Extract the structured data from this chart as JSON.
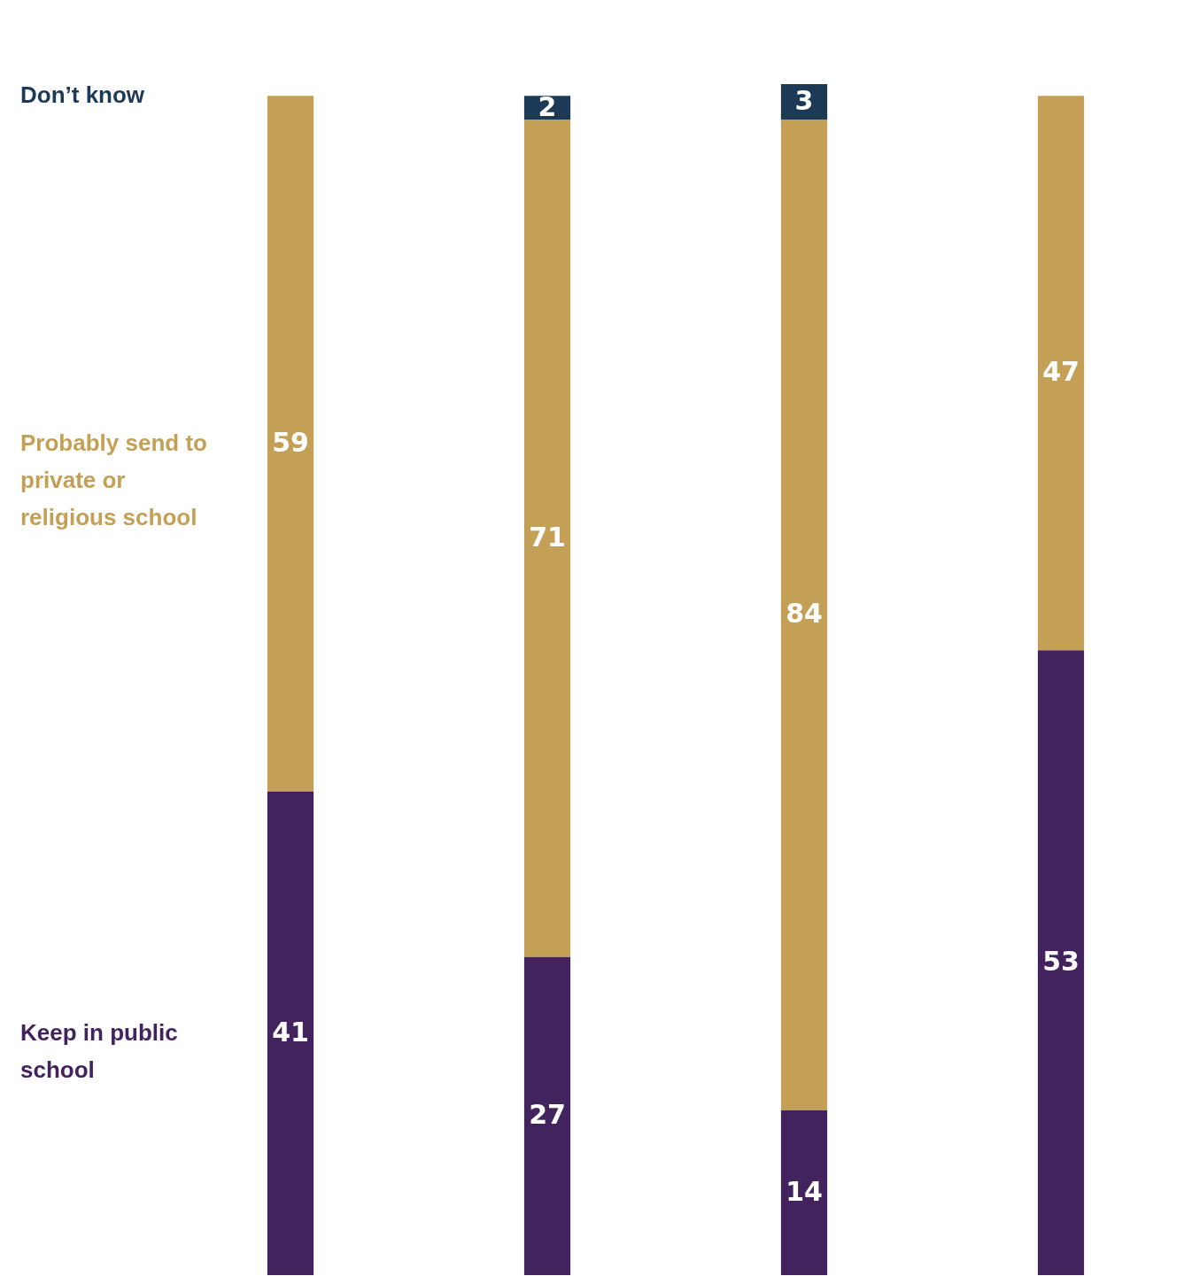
{
  "chart_data": {
    "type": "bar",
    "stacked": true,
    "data_labels": true,
    "categories": [
      null,
      null,
      null,
      null
    ],
    "series": [
      {
        "name": "Keep in public school",
        "color": "#42235e",
        "values": [
          41,
          27,
          14,
          53
        ]
      },
      {
        "name": "Probably send to private or religious school",
        "color": "#c4a056",
        "values": [
          59,
          71,
          84,
          47
        ]
      },
      {
        "name": "Don’t know",
        "color": "#1c3a55",
        "values": [
          null,
          2,
          3,
          null
        ]
      }
    ]
  }
}
